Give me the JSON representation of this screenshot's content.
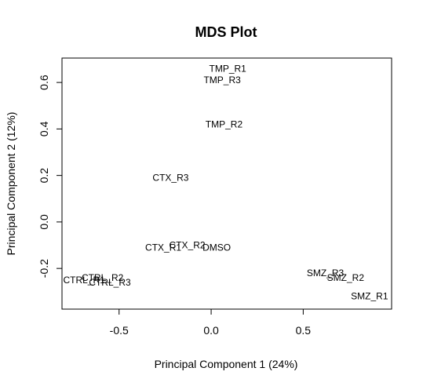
{
  "chart_data": {
    "type": "scatter",
    "title": "MDS Plot",
    "xlabel": "Principal Component 1 (24%)",
    "ylabel": "Principal Component 2 (12%)",
    "xlim": [
      -0.81,
      0.98
    ],
    "ylim": [
      -0.375,
      0.705
    ],
    "xticks": [
      -0.5,
      0.0,
      0.5
    ],
    "xtick_labels": [
      "-0.5",
      "0.0",
      "0.5"
    ],
    "yticks": [
      -0.2,
      0.0,
      0.2,
      0.4,
      0.6
    ],
    "ytick_labels": [
      "-0.2",
      "0.0",
      "0.2",
      "0.4",
      "0.6"
    ],
    "grid": false,
    "marker": "text-labels",
    "colors": {
      "foreground": "#000000",
      "background": "#ffffff"
    },
    "points": [
      {
        "label": "TMP_R1",
        "x": 0.09,
        "y": 0.66
      },
      {
        "label": "TMP_R3",
        "x": 0.06,
        "y": 0.61
      },
      {
        "label": "TMP_R2",
        "x": 0.07,
        "y": 0.42
      },
      {
        "label": "CTX_R3",
        "x": -0.22,
        "y": 0.19
      },
      {
        "label": "CTX_R2",
        "x": -0.13,
        "y": -0.1
      },
      {
        "label": "CTX_R1",
        "x": -0.26,
        "y": -0.11
      },
      {
        "label": "DMSO",
        "x": 0.03,
        "y": -0.11
      },
      {
        "label": "CTRL_R2",
        "x": -0.59,
        "y": -0.24
      },
      {
        "label": "CTRL_R1",
        "x": -0.69,
        "y": -0.25
      },
      {
        "label": "CTRL_R3",
        "x": -0.55,
        "y": -0.26
      },
      {
        "label": "SMZ_R3",
        "x": 0.62,
        "y": -0.22
      },
      {
        "label": "SMZ_R2",
        "x": 0.73,
        "y": -0.24
      },
      {
        "label": "SMZ_R1",
        "x": 0.86,
        "y": -0.32
      }
    ]
  }
}
